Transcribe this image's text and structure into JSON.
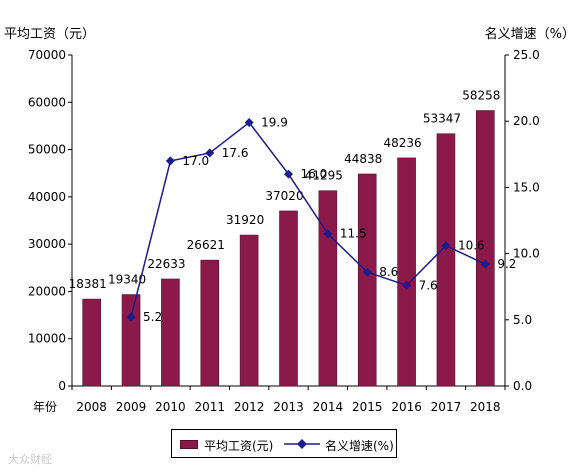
{
  "chart_data": {
    "type": "bar",
    "left_axis_title": "平均工资（元）",
    "right_axis_title": "名义增速（%）",
    "x_axis_title": "年份",
    "categories": [
      "2008",
      "2009",
      "2010",
      "2011",
      "2012",
      "2013",
      "2014",
      "2015",
      "2016",
      "2017",
      "2018"
    ],
    "y_left_ticks": [
      "0",
      "10000",
      "20000",
      "30000",
      "40000",
      "50000",
      "60000",
      "70000"
    ],
    "y_right_ticks": [
      "0.0",
      "5.0",
      "10.0",
      "15.0",
      "20.0",
      "25.0"
    ],
    "ylim_left": [
      0,
      70000
    ],
    "ylim_right": [
      0,
      25
    ],
    "series": [
      {
        "name": "平均工资(元)",
        "kind": "bar",
        "axis": "left",
        "color": "#8b1a4a",
        "values": [
          18381,
          19340,
          22633,
          26621,
          31920,
          37020,
          41295,
          44838,
          48236,
          53347,
          58258
        ],
        "labels": [
          "18381",
          "19340",
          "22633",
          "26621",
          "31920",
          "37020",
          "41295",
          "44838",
          "48236",
          "53347",
          "58258"
        ]
      },
      {
        "name": "名义增速(%)",
        "kind": "line",
        "axis": "right",
        "color": "#1c1c8c",
        "values": [
          null,
          5.2,
          17.0,
          17.6,
          19.9,
          16.0,
          11.5,
          8.6,
          7.6,
          10.6,
          9.2
        ],
        "labels": [
          "",
          "5.2",
          "17.0",
          "17.6",
          "19.9",
          "16.0",
          "11.5",
          "8.6",
          "7.6",
          "10.6",
          "9.2"
        ]
      }
    ],
    "legend_position": "bottom",
    "grid": false
  },
  "watermark": "大众财经"
}
